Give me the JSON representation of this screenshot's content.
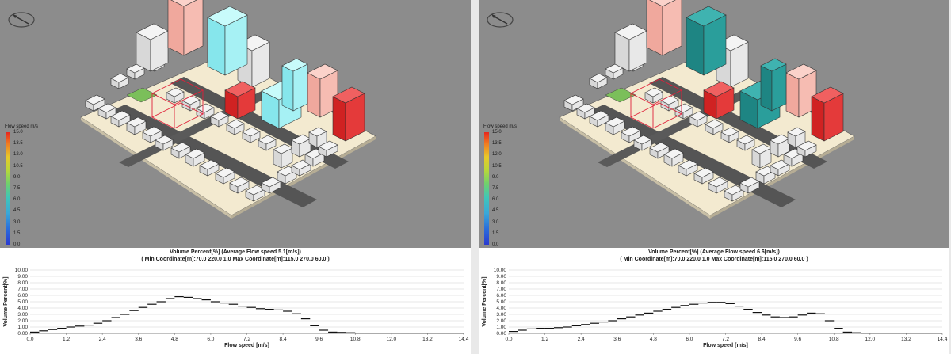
{
  "panels": [
    {
      "legend": {
        "title": "Flow speed m/s",
        "ticks": [
          "15.0",
          "13.5",
          "12.0",
          "10.5",
          "9.0",
          "7.5",
          "6.0",
          "4.5",
          "3.0",
          "1.5",
          "0.0"
        ]
      },
      "chart_title_line1": "Volume Percent[%] (Average Flow speed 5.1[m/s])",
      "chart_title_line2": "( Min Coordinate[m]:70.0 220.0 1.0    Max Coordinate[m]:115.0 270.0 60.0 )",
      "chart_data": {
        "type": "line",
        "xlabel": "Flow speed [m/s]",
        "ylabel": "Volume Percent[%]",
        "xlim": [
          0,
          14.4
        ],
        "ylim": [
          0,
          10
        ],
        "x_ticks": [
          "0.0",
          "1.2",
          "2.4",
          "3.6",
          "4.8",
          "6.0",
          "7.2",
          "8.4",
          "9.6",
          "10.8",
          "12.0",
          "13.2",
          "14.4"
        ],
        "y_ticks": [
          "0.00",
          "1.00",
          "2.00",
          "3.00",
          "4.00",
          "5.00",
          "6.00",
          "7.00",
          "8.00",
          "9.00",
          "10.00"
        ],
        "x": [
          0.15,
          0.45,
          0.75,
          1.05,
          1.35,
          1.65,
          1.95,
          2.25,
          2.55,
          2.85,
          3.15,
          3.45,
          3.75,
          4.05,
          4.35,
          4.65,
          4.95,
          5.25,
          5.55,
          5.85,
          6.15,
          6.45,
          6.75,
          7.05,
          7.35,
          7.65,
          7.95,
          8.25,
          8.55,
          8.85,
          9.15,
          9.45,
          9.75,
          10.05,
          10.35,
          10.65,
          10.95,
          11.25,
          11.55,
          11.85,
          12.15,
          12.45,
          12.75,
          13.05,
          13.35,
          13.65,
          13.95,
          14.25
        ],
        "values": [
          0.2,
          0.4,
          0.6,
          0.8,
          1.0,
          1.15,
          1.3,
          1.6,
          2.0,
          2.5,
          3.0,
          3.6,
          4.1,
          4.6,
          5.0,
          5.5,
          5.8,
          5.7,
          5.5,
          5.3,
          5.0,
          4.8,
          4.6,
          4.3,
          4.1,
          3.9,
          3.8,
          3.7,
          3.5,
          3.1,
          2.3,
          1.2,
          0.5,
          0.2,
          0.15,
          0.1,
          0.05,
          0.05,
          0.05,
          0.05,
          0.05,
          0.05,
          0.05,
          0.05,
          0.05,
          0.05,
          0.05,
          0.05
        ]
      }
    },
    {
      "legend": {
        "title": "Flow speed m/s",
        "ticks": [
          "15.0",
          "13.5",
          "12.0",
          "10.5",
          "9.0",
          "7.5",
          "6.0",
          "4.5",
          "3.0",
          "1.5",
          "0.0"
        ]
      },
      "chart_title_line1": "Volume Percent[%] (Average Flow speed 6.6[m/s])",
      "chart_title_line2": "( Min Coordinate[m]:70.0 220.0 1.0    Max Coordinate[m]:115.0 270.0 60.0 )",
      "chart_data": {
        "type": "line",
        "xlabel": "Flow speed [m/s]",
        "ylabel": "Volume Percent[%]",
        "xlim": [
          0,
          14.4
        ],
        "ylim": [
          0,
          10
        ],
        "x_ticks": [
          "0.0",
          "1.2",
          "2.4",
          "3.6",
          "4.8",
          "6.0",
          "7.2",
          "8.4",
          "9.6",
          "10.8",
          "12.0",
          "13.2",
          "14.4"
        ],
        "y_ticks": [
          "0.00",
          "1.00",
          "2.00",
          "3.00",
          "4.00",
          "5.00",
          "6.00",
          "7.00",
          "8.00",
          "9.00",
          "10.00"
        ],
        "x": [
          0.15,
          0.45,
          0.75,
          1.05,
          1.35,
          1.65,
          1.95,
          2.25,
          2.55,
          2.85,
          3.15,
          3.45,
          3.75,
          4.05,
          4.35,
          4.65,
          4.95,
          5.25,
          5.55,
          5.85,
          6.15,
          6.45,
          6.75,
          7.05,
          7.35,
          7.65,
          7.95,
          8.25,
          8.55,
          8.85,
          9.15,
          9.45,
          9.75,
          10.05,
          10.35,
          10.65,
          10.95,
          11.25,
          11.55,
          11.85,
          12.15,
          12.45,
          12.75,
          13.05,
          13.35,
          13.65,
          13.95,
          14.25
        ],
        "values": [
          0.3,
          0.5,
          0.7,
          0.8,
          0.8,
          0.9,
          1.0,
          1.2,
          1.4,
          1.6,
          1.8,
          2.0,
          2.3,
          2.6,
          2.9,
          3.2,
          3.5,
          3.8,
          4.1,
          4.4,
          4.6,
          4.8,
          4.9,
          4.9,
          4.7,
          4.3,
          3.8,
          3.3,
          2.9,
          2.6,
          2.5,
          2.6,
          2.9,
          3.2,
          3.1,
          2.0,
          0.8,
          0.2,
          0.1,
          0.05,
          0.05,
          0.05,
          0.05,
          0.05,
          0.05,
          0.05,
          0.05,
          0.05
        ]
      }
    }
  ]
}
